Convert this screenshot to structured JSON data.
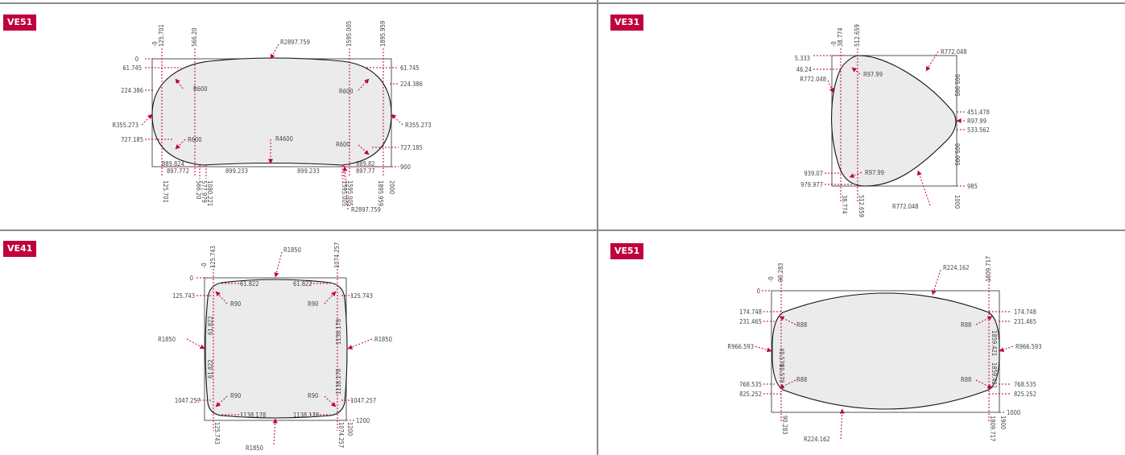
{
  "panels": [
    {
      "title": "VE51",
      "labels": {
        "y0": "0",
        "y1": "61.745",
        "y2": "224.386",
        "y3": "R355.273",
        "y4": "727.185",
        "y1r": "61.745",
        "y2r": "224.386",
        "y3r": "R355.273",
        "y4r": "727.185",
        "y5r": "900",
        "rtop": "R2897.759",
        "rbot": "R2897.759",
        "r4600": "R4600",
        "r600a": "R600",
        "r600b": "R600",
        "r600c": "R600",
        "r600d": "R600",
        "b1": "889.824",
        "b2": "897.772",
        "b3": "899.233",
        "b4": "899.233",
        "b5": "889.82",
        "b6": "897.77",
        "t1": "-0",
        "t2": "125.701",
        "t3": "566.20",
        "t4": "1595.005",
        "t5": "1895.959",
        "v1": "125.701",
        "v2": "566.20",
        "v3": "577.979",
        "v4": "1080.221",
        "v5": "1595.005",
        "v6": "1595.005",
        "v7": "1895.959",
        "v8": "2000"
      }
    },
    {
      "title": "VE31",
      "labels": {
        "y0": "5.333",
        "y1": "46.24",
        "y2": "R772.048",
        "r97a": "R97.99",
        "rtr": "R772.048",
        "r451": "451.478",
        "r97b": "R97.99",
        "r533": "533.562",
        "yl1": "939.07",
        "yl2": "979.977",
        "r97c": "R97.99",
        "rbot": "R772.048",
        "r985": "985",
        "t0": "-0",
        "t1": "38.774",
        "t2": "512.659",
        "b1": "38.774",
        "b2": "512.659",
        "b3": "1000",
        "v1": "905.995",
        "v2": "905.995"
      }
    },
    {
      "title": "VE41",
      "labels": {
        "y0": "0",
        "y1": "125.743",
        "y2": "R1850",
        "y3": "1047.257",
        "y1r": "125.743",
        "y2r": "R1850",
        "y3r": "1047.257",
        "y4r": "1200",
        "rtop": "R1850",
        "rbot": "R1850",
        "r90a": "R90",
        "r90b": "R90",
        "r90c": "R90",
        "r90d": "R90",
        "h1": "61.822",
        "h2": "61.822",
        "h3": "1138.178",
        "h4": "1138.178",
        "vl1": "61.822",
        "vl2": "61.822",
        "vr1": "1138.178",
        "vr2": "1138.178",
        "t0": "-0",
        "t1": "125.743",
        "t2": "1074.257",
        "b1": "125.743",
        "b2": "1074.257",
        "b3": "1200"
      }
    },
    {
      "title": "VE51",
      "labels": {
        "y0": "0",
        "y1": "174.748",
        "y2": "231.465",
        "y3": "R966.593",
        "y4": "768.535",
        "y5": "825.252",
        "y1r": "174.748",
        "y2r": "231.465",
        "y3r": "R966.593",
        "y4r": "768.535",
        "y5r": "825.252",
        "y6r": "1000",
        "rtop": "R224.162",
        "rbot": "R224.162",
        "r88a": "R88",
        "r88b": "R88",
        "r88c": "R88",
        "r88d": "R88",
        "t0": "-0",
        "t1": "90.283",
        "t2": "1809.717",
        "b1": "90.283",
        "b2": "1809.717",
        "b3": "1900",
        "vl1": "40.579",
        "vl2": "40.579",
        "vr1": "1859.421",
        "vr2": "1859.421"
      }
    }
  ]
}
